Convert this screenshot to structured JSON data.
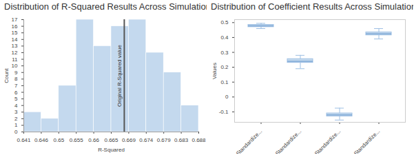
{
  "chart_data": [
    {
      "type": "histogram",
      "title": "Distribution of R-Squared Results Across Simulations",
      "xlabel": "R-Squared",
      "ylabel": "Count",
      "bins": [
        0.641,
        0.6457,
        0.6504,
        0.6551,
        0.6598,
        0.6645,
        0.6692,
        0.6739,
        0.6786,
        0.6833,
        0.688
      ],
      "counts": [
        3,
        2,
        7,
        17,
        13,
        16,
        17,
        12,
        9,
        4
      ],
      "color": "#c4d9ee",
      "xlim": [
        0.641,
        0.688
      ],
      "xticks": [
        0.641,
        {
          "value": 0.6457,
          "label": "0.646"
        },
        {
          "value": 0.6504,
          "label": "0.65"
        },
        {
          "value": 0.6551,
          "label": "0.655"
        },
        {
          "value": 0.6598,
          "label": "0.66"
        },
        {
          "value": 0.6645,
          "label": "0.665"
        },
        {
          "value": 0.6692,
          "label": "0.669"
        },
        {
          "value": 0.6739,
          "label": "0.674"
        },
        {
          "value": 0.6786,
          "label": "0.679"
        },
        {
          "value": 0.6833,
          "label": "0.683"
        },
        0.688
      ],
      "ylim": [
        0,
        17
      ],
      "yticks": [
        0,
        1,
        2,
        3,
        4,
        5,
        6,
        7,
        8,
        9,
        10,
        11,
        12,
        13,
        14,
        15,
        16,
        17
      ],
      "annotations": [
        {
          "x": 0.668,
          "text": "Original R-Squared value"
        }
      ]
    },
    {
      "type": "box",
      "title": "Distribution of Coefficient Results Across Simulations",
      "ylabel": "Values",
      "categories": [
        "Standardize...",
        "Standardize...",
        "Standardize...",
        "Standardize..."
      ],
      "boxes": [
        {
          "min": 0.46,
          "q1": 0.47,
          "median": 0.478,
          "q3": 0.485,
          "max": 0.495
        },
        {
          "min": 0.19,
          "q1": 0.23,
          "median": 0.24,
          "q3": 0.255,
          "max": 0.28
        },
        {
          "min": -0.155,
          "q1": -0.13,
          "median": -0.12,
          "q3": -0.11,
          "max": -0.075
        },
        {
          "min": 0.39,
          "q1": 0.415,
          "median": 0.425,
          "q3": 0.435,
          "max": 0.46
        }
      ],
      "color": "#c4d9ee",
      "ylim": [
        -0.17,
        0.52
      ],
      "yticks": [
        -0.1,
        0,
        0.1,
        0.2,
        0.3,
        0.4,
        0.5
      ]
    }
  ]
}
